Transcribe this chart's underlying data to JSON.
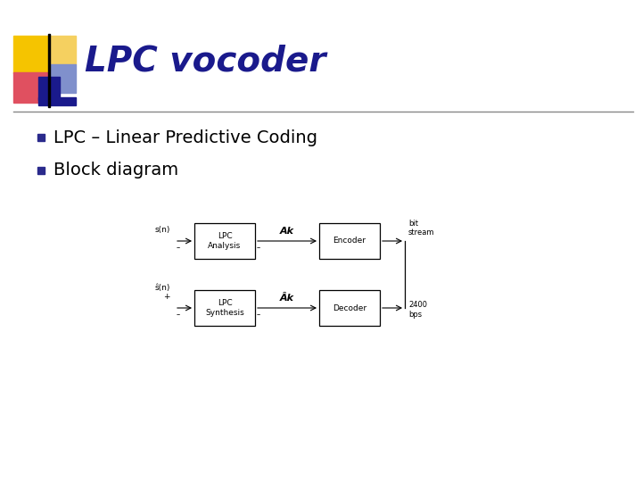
{
  "title": "LPC vocoder",
  "title_color": "#1a1a8c",
  "title_fontsize": 28,
  "bullet1": "LPC – Linear Predictive Coding",
  "bullet2": "Block diagram",
  "bullet_fontsize": 14,
  "bullet_color": "#000000",
  "bullet_square_color": "#2a2a8c",
  "bg_color": "#ffffff",
  "logo_colors": {
    "yellow_big": "#f5c400",
    "yellow_small": "#f5d060",
    "red": "#e05060",
    "blue_dark": "#1a1a8c",
    "blue_light": "#8090cc"
  },
  "diagram": {
    "box_color": "#000000",
    "text_color": "#000000",
    "line_color": "#000000",
    "top_row": {
      "input_label": "s(n)",
      "box1_label": "LPC\nAnalysis",
      "mid_label": "Ak",
      "box2_label": "Encoder",
      "output_label": "bit\nstream"
    },
    "bottom_row": {
      "input_label": "ŝ(n)\n+",
      "box1_label": "LPC\nSynthesis",
      "mid_label": "Âk",
      "box2_label": "Decoder",
      "output_label": "2400\nbps"
    }
  }
}
